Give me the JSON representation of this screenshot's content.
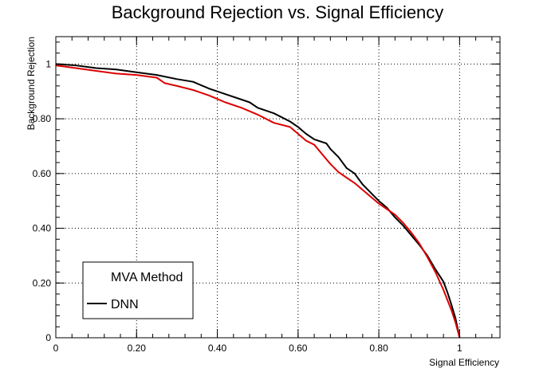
{
  "chart_data": {
    "type": "line",
    "title": "Background Rejection vs. Signal Efficiency",
    "xlabel": "Signal Efficiency",
    "ylabel": "Background Rejection",
    "xlim": [
      0,
      1.1
    ],
    "ylim": [
      0,
      1.1
    ],
    "grid": true,
    "legend_placement": "bottom-left",
    "x_ticks": [
      {
        "value": 0,
        "label": "0"
      },
      {
        "value": 0.2,
        "label": "0.20"
      },
      {
        "value": 0.4,
        "label": "0.40"
      },
      {
        "value": 0.6,
        "label": "0.60"
      },
      {
        "value": 0.8,
        "label": "0.80"
      },
      {
        "value": 1.0,
        "label": "1"
      }
    ],
    "y_ticks": [
      {
        "value": 0,
        "label": "0"
      },
      {
        "value": 0.2,
        "label": "0.20"
      },
      {
        "value": 0.4,
        "label": "0.40"
      },
      {
        "value": 0.6,
        "label": "0.60"
      },
      {
        "value": 0.8,
        "label": "0.80"
      },
      {
        "value": 1.0,
        "label": "1"
      }
    ],
    "legend": {
      "header": "MVA Method",
      "entries": [
        {
          "label": "DNN",
          "color": "#000000"
        }
      ]
    },
    "series": [
      {
        "name": "DNN",
        "color": "#000000",
        "x": [
          0.0,
          0.05,
          0.1,
          0.15,
          0.2,
          0.25,
          0.3,
          0.34,
          0.38,
          0.42,
          0.46,
          0.48,
          0.5,
          0.54,
          0.58,
          0.6,
          0.62,
          0.64,
          0.67,
          0.68,
          0.7,
          0.72,
          0.74,
          0.76,
          0.8,
          0.82,
          0.84,
          0.86,
          0.88,
          0.9,
          0.92,
          0.94,
          0.96,
          0.97,
          0.98,
          0.99,
          0.995,
          1.0
        ],
        "y": [
          1.0,
          0.995,
          0.985,
          0.98,
          0.97,
          0.96,
          0.945,
          0.935,
          0.91,
          0.89,
          0.87,
          0.86,
          0.84,
          0.82,
          0.79,
          0.77,
          0.745,
          0.725,
          0.71,
          0.69,
          0.66,
          0.62,
          0.6,
          0.56,
          0.5,
          0.475,
          0.44,
          0.41,
          0.375,
          0.34,
          0.3,
          0.25,
          0.205,
          0.165,
          0.12,
          0.07,
          0.035,
          0.0
        ]
      },
      {
        "color": "#dd0000",
        "x": [
          0.0,
          0.05,
          0.1,
          0.15,
          0.2,
          0.25,
          0.27,
          0.3,
          0.34,
          0.38,
          0.42,
          0.46,
          0.5,
          0.54,
          0.58,
          0.6,
          0.62,
          0.64,
          0.66,
          0.68,
          0.7,
          0.72,
          0.74,
          0.76,
          0.8,
          0.82,
          0.84,
          0.86,
          0.88,
          0.9,
          0.92,
          0.94,
          0.96,
          0.98,
          0.99,
          1.0
        ],
        "y": [
          0.995,
          0.985,
          0.975,
          0.965,
          0.96,
          0.95,
          0.93,
          0.92,
          0.905,
          0.885,
          0.86,
          0.84,
          0.815,
          0.785,
          0.77,
          0.745,
          0.72,
          0.705,
          0.67,
          0.635,
          0.605,
          0.585,
          0.565,
          0.54,
          0.49,
          0.47,
          0.45,
          0.42,
          0.385,
          0.345,
          0.295,
          0.24,
          0.175,
          0.1,
          0.055,
          0.0
        ]
      }
    ]
  }
}
